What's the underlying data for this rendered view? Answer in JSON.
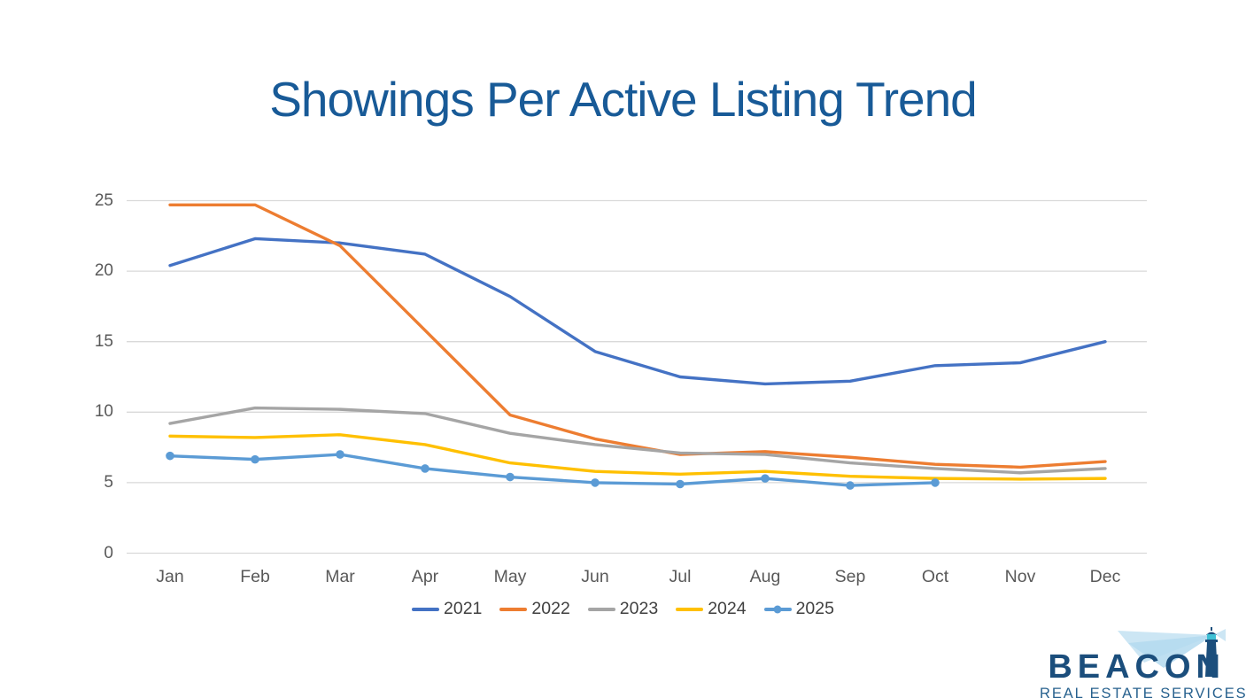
{
  "title": "Showings Per Active Listing Trend",
  "colors": {
    "title": "#185A97",
    "axis_label": "#595959",
    "legend_label": "#404040",
    "gridline": "#D9D9D9",
    "logo_navy": "#1B4E7C",
    "logo_tagline": "#27618E",
    "logo_beam": "#CCE6F4",
    "logo_beam_bright": "#B3D9EE",
    "logo_lantern": "#3FC0D4"
  },
  "logo": {
    "name": "BEACON",
    "tagline": "REAL ESTATE SERVICES",
    "icon": "lighthouse-icon"
  },
  "chart_data": {
    "type": "line",
    "title": "Showings Per Active Listing Trend",
    "categories": [
      "Jan",
      "Feb",
      "Mar",
      "Apr",
      "May",
      "Jun",
      "Jul",
      "Aug",
      "Sep",
      "Oct",
      "Nov",
      "Dec"
    ],
    "ylim": [
      0,
      25
    ],
    "yticks": [
      0,
      5,
      10,
      15,
      20,
      25
    ],
    "grid": true,
    "legend_position": "bottom",
    "series": [
      {
        "name": "2021",
        "color": "#4472C4",
        "marker": false,
        "values": [
          20.4,
          22.3,
          22.0,
          21.2,
          18.2,
          14.3,
          12.5,
          12.0,
          12.2,
          13.3,
          13.5,
          15.0
        ]
      },
      {
        "name": "2022",
        "color": "#ED7D31",
        "marker": false,
        "values": [
          24.7,
          24.7,
          21.8,
          15.8,
          9.8,
          8.1,
          7.0,
          7.2,
          6.8,
          6.3,
          6.1,
          6.5
        ]
      },
      {
        "name": "2023",
        "color": "#A5A5A5",
        "marker": false,
        "values": [
          9.2,
          10.3,
          10.2,
          9.9,
          8.5,
          7.7,
          7.1,
          7.0,
          6.4,
          6.0,
          5.7,
          6.0
        ]
      },
      {
        "name": "2024",
        "color": "#FFC000",
        "marker": false,
        "values": [
          8.3,
          8.2,
          8.4,
          7.7,
          6.4,
          5.8,
          5.6,
          5.8,
          5.45,
          5.3,
          5.25,
          5.3
        ]
      },
      {
        "name": "2025",
        "color": "#5B9BD5",
        "marker": true,
        "values": [
          6.9,
          6.65,
          7.0,
          6.0,
          5.4,
          5.0,
          4.9,
          5.3,
          4.8,
          5.0,
          null,
          null
        ]
      }
    ]
  }
}
